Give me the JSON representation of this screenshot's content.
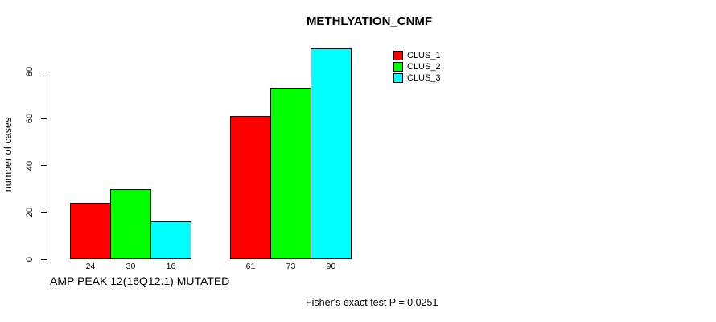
{
  "colors": {
    "background": "#ffffff",
    "text": "#000000",
    "axis": "#000000"
  },
  "chart_data": {
    "type": "bar",
    "title": "METHLYATION_CNMF",
    "ylabel": "number of cases",
    "xlabel": "AMP PEAK 12(16Q12.1) MUTATED",
    "footnote": "Fisher's exact test P = 0.0251",
    "ylim": [
      0,
      90
    ],
    "yticks": [
      0,
      20,
      40,
      60,
      80
    ],
    "grid": false,
    "legend_position": "top-right",
    "group_count": 2,
    "bar_value_labels_shown": true,
    "series": [
      {
        "name": "CLUS_1",
        "color": "#ff0000",
        "values": [
          24,
          61
        ]
      },
      {
        "name": "CLUS_2",
        "color": "#00ff00",
        "values": [
          30,
          73
        ]
      },
      {
        "name": "CLUS_3",
        "color": "#00ffff",
        "values": [
          16,
          90
        ]
      }
    ]
  }
}
